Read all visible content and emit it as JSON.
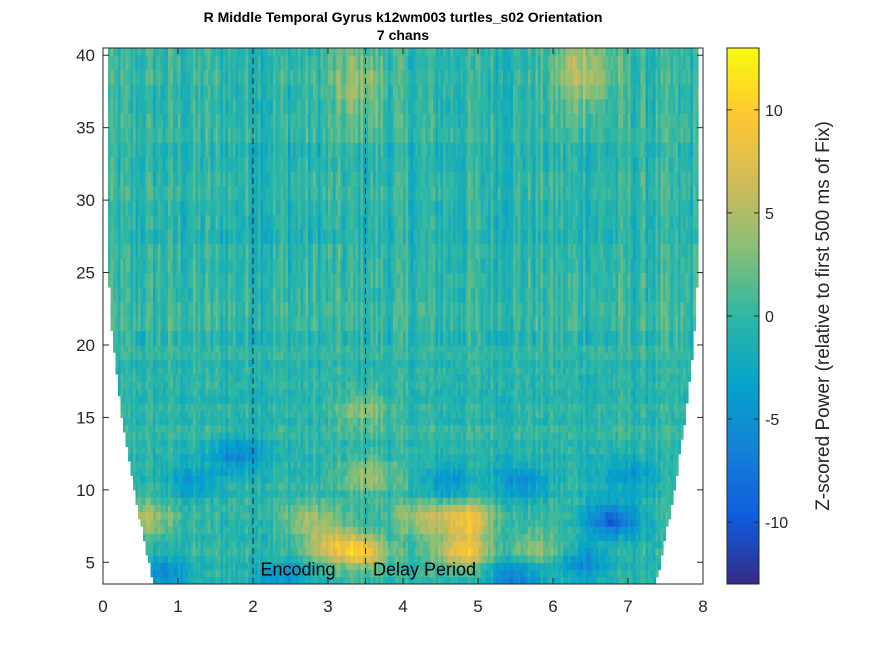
{
  "chart_data": {
    "type": "heatmap",
    "title": "R Middle Temporal Gyrus k12wm003 turtles_s02 Orientation",
    "subtitle": "7 chans",
    "xlim": [
      0,
      8
    ],
    "ylim": [
      3.5,
      40.5
    ],
    "x_ticks": [
      "0",
      "1",
      "2",
      "3",
      "4",
      "5",
      "6",
      "7",
      "8"
    ],
    "y_ticks": [
      "5",
      "10",
      "15",
      "20",
      "25",
      "30",
      "35",
      "40"
    ],
    "y_tick_values": [
      5,
      10,
      15,
      20,
      25,
      30,
      35,
      40
    ],
    "event_lines_x": [
      2.0,
      3.5
    ],
    "annotations": [
      {
        "text": "Encoding",
        "x": 2.1,
        "y": 4.5
      },
      {
        "text": "Delay Period",
        "x": 3.6,
        "y": 4.5
      }
    ],
    "colorbar": {
      "label": "Z-scored Power (relative to first 500 ms of Fix)",
      "range": [
        -13,
        13
      ],
      "ticks": [
        "10",
        "5",
        "0",
        "-5",
        "-10"
      ],
      "tick_values": [
        10,
        5,
        0,
        -5,
        -10
      ],
      "colormap": "parula"
    },
    "grid": false,
    "hotspots": [
      {
        "x": 3.45,
        "y": 5.8,
        "z": 9
      },
      {
        "x": 4.8,
        "y": 5.8,
        "z": 9
      },
      {
        "x": 4.85,
        "y": 8,
        "z": 9
      },
      {
        "x": 3.0,
        "y": 6.3,
        "z": 6
      },
      {
        "x": 4.25,
        "y": 8,
        "z": 5
      },
      {
        "x": 2.75,
        "y": 8,
        "z": 4
      },
      {
        "x": 0.55,
        "y": 8,
        "z": 5
      },
      {
        "x": 3.55,
        "y": 11,
        "z": 5
      },
      {
        "x": 6.4,
        "y": 39,
        "z": 6
      },
      {
        "x": 3.4,
        "y": 38,
        "z": 4
      },
      {
        "x": 3.5,
        "y": 15.5,
        "z": 4
      },
      {
        "x": 5.8,
        "y": 6,
        "z": 4
      },
      {
        "x": 1.8,
        "y": 12.5,
        "z": -5
      },
      {
        "x": 1.2,
        "y": 10.5,
        "z": -4
      },
      {
        "x": 6.8,
        "y": 8,
        "z": -9
      },
      {
        "x": 5.6,
        "y": 10.5,
        "z": -5
      },
      {
        "x": 4.6,
        "y": 10.5,
        "z": -4
      },
      {
        "x": 7.0,
        "y": 11,
        "z": -4
      },
      {
        "x": 5.5,
        "y": 4,
        "z": -6
      },
      {
        "x": 6.4,
        "y": 5,
        "z": -5
      },
      {
        "x": 0.8,
        "y": 4.3,
        "z": -5
      },
      {
        "x": 2.4,
        "y": 4,
        "z": -4
      }
    ]
  }
}
